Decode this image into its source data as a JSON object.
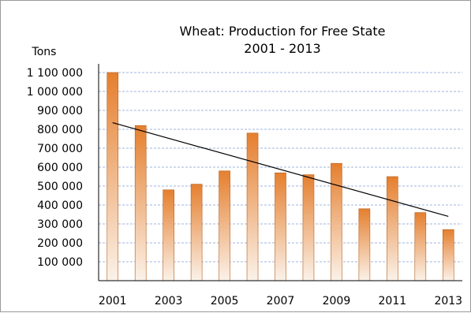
{
  "chart_data": {
    "type": "bar",
    "title": "Wheat: Production for Free State",
    "subtitle": "2001 - 2013",
    "ylabel": "Tons",
    "xlabel": "",
    "categories": [
      "2001",
      "2002",
      "2003",
      "2004",
      "2005",
      "2006",
      "2007",
      "2008",
      "2009",
      "2010",
      "2011",
      "2012",
      "2013"
    ],
    "x_tick_labels": [
      "2001",
      "",
      "2003",
      "",
      "2005",
      "",
      "2007",
      "",
      "2009",
      "",
      "2011",
      "",
      "2013"
    ],
    "values": [
      1100000,
      820000,
      480000,
      510000,
      580000,
      780000,
      570000,
      560000,
      620000,
      380000,
      550000,
      360000,
      270000
    ],
    "trendline": {
      "start": 835000,
      "end": 340000
    },
    "ylim": [
      0,
      1100000
    ],
    "y_ticks": [
      100000,
      200000,
      300000,
      400000,
      500000,
      600000,
      700000,
      800000,
      900000,
      1000000,
      1100000
    ],
    "y_tick_labels": [
      "100 000",
      "200 000",
      "300 000",
      "400 000",
      "500 000",
      "600 000",
      "700 000",
      "800 000",
      "900 000",
      "1 000 000",
      "1 100 000"
    ],
    "grid": true,
    "colors": {
      "bar_dark": "#e57f2e",
      "bar_light": "#fbf2e9",
      "bar_stroke": "#b55f1c",
      "grid": "#9fb6dc",
      "trend": "#000000"
    }
  }
}
